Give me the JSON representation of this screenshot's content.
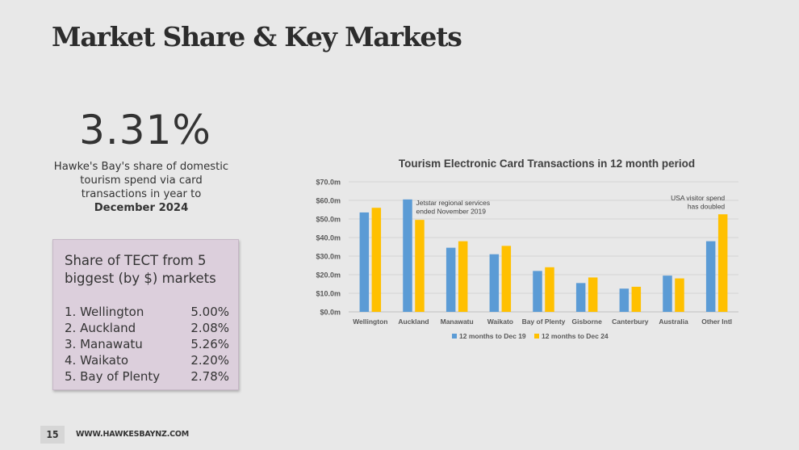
{
  "slide": {
    "title": "Market Share & Key Markets",
    "page_number": "15",
    "website": "WWW.HAWKESBAYNZ.COM"
  },
  "stat": {
    "value": "3.31%",
    "description": "Hawke's Bay's share of domestic tourism spend via card transactions in year to",
    "period": "December 2024"
  },
  "tect_box": {
    "title": "Share of TECT from 5 biggest (by $) markets",
    "items": [
      {
        "rank": "1.",
        "name": "Wellington",
        "share": "5.00%"
      },
      {
        "rank": "2.",
        "name": "Auckland",
        "share": "2.08%"
      },
      {
        "rank": "3.",
        "name": "Manawatu",
        "share": "5.26%"
      },
      {
        "rank": "4.",
        "name": "Waikato",
        "share": "2.20%"
      },
      {
        "rank": "5.",
        "name": "Bay of Plenty",
        "share": "2.78%"
      }
    ]
  },
  "chart_data": {
    "type": "bar",
    "title": "Tourism Electronic Card Transactions in 12 month period",
    "categories": [
      "Wellington",
      "Auckland",
      "Manawatu",
      "Waikato",
      "Bay of Plenty",
      "Gisborne",
      "Canterbury",
      "Australia",
      "Other Intl"
    ],
    "series": [
      {
        "name": "12 months to Dec 19",
        "color": "#5b9bd5",
        "values": [
          53.5,
          60.5,
          34.5,
          31.0,
          22.0,
          15.5,
          12.5,
          19.5,
          38.0
        ]
      },
      {
        "name": "12 months to Dec 24",
        "color": "#ffc000",
        "values": [
          56.0,
          49.5,
          38.0,
          35.5,
          24.0,
          18.5,
          13.5,
          18.0,
          52.5
        ]
      }
    ],
    "ylim": [
      0,
      70
    ],
    "yticks": [
      "$0.0m",
      "$10.0m",
      "$20.0m",
      "$30.0m",
      "$40.0m",
      "$50.0m",
      "$60.0m",
      "$70.0m"
    ],
    "grid": true,
    "legend_position": "bottom",
    "annotations": [
      {
        "category": "Auckland",
        "lines": [
          "Jetstar regional services",
          "ended November 2019"
        ]
      },
      {
        "category": "Other Intl",
        "lines": [
          "USA visitor spend",
          "has doubled"
        ]
      }
    ]
  }
}
